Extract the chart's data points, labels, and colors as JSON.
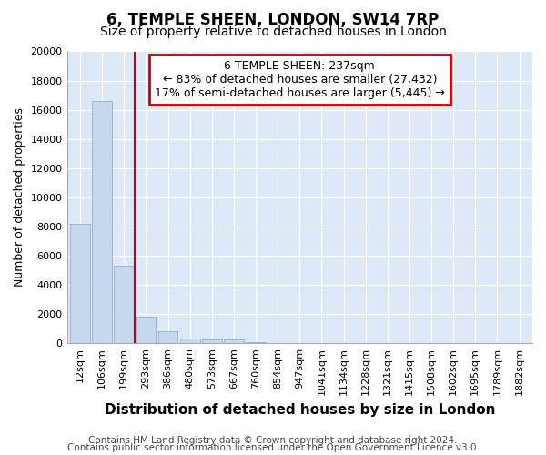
{
  "title1": "6, TEMPLE SHEEN, LONDON, SW14 7RP",
  "title2": "Size of property relative to detached houses in London",
  "xlabel": "Distribution of detached houses by size in London",
  "ylabel": "Number of detached properties",
  "categories": [
    "12sqm",
    "106sqm",
    "199sqm",
    "293sqm",
    "386sqm",
    "480sqm",
    "573sqm",
    "667sqm",
    "760sqm",
    "854sqm",
    "947sqm",
    "1041sqm",
    "1134sqm",
    "1228sqm",
    "1321sqm",
    "1415sqm",
    "1508sqm",
    "1602sqm",
    "1695sqm",
    "1789sqm",
    "1882sqm"
  ],
  "values": [
    8200,
    16600,
    5300,
    1820,
    800,
    350,
    250,
    250,
    50,
    0,
    0,
    0,
    0,
    0,
    0,
    0,
    0,
    0,
    0,
    0,
    0
  ],
  "bar_color": "#c5d8ed",
  "bar_edge_color": "#8ab4d4",
  "red_line_x": 2.5,
  "annotation_text": "6 TEMPLE SHEEN: 237sqm\n← 83% of detached houses are smaller (27,432)\n17% of semi-detached houses are larger (5,445) →",
  "annotation_box_color": "#ffffff",
  "annotation_box_edge": "#cc0000",
  "red_line_color": "#cc0000",
  "footnote1": "Contains HM Land Registry data © Crown copyright and database right 2024.",
  "footnote2": "Contains public sector information licensed under the Open Government Licence v3.0.",
  "background_color": "#ffffff",
  "plot_bg_color": "#dce8f5",
  "ylim": [
    0,
    20000
  ],
  "yticks": [
    0,
    2000,
    4000,
    6000,
    8000,
    10000,
    12000,
    14000,
    16000,
    18000,
    20000
  ],
  "title1_fontsize": 12,
  "title2_fontsize": 10,
  "xlabel_fontsize": 11,
  "ylabel_fontsize": 9,
  "tick_fontsize": 8,
  "annotation_fontsize": 9,
  "footnote_fontsize": 7.5
}
